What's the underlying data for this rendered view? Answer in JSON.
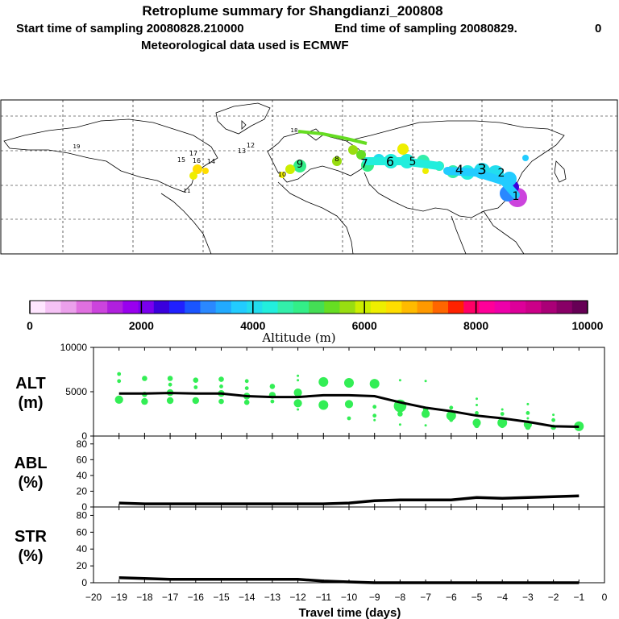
{
  "header": {
    "title": "Retroplume summary for Shangdianzi_200808",
    "start_label": "Start time of sampling 20080828.210000",
    "end_label": "End time of sampling 20080829.",
    "end_suffix": "0",
    "met_label": "Meteorological data used is ECMWF"
  },
  "colorbar": {
    "min": 0,
    "max": 10000,
    "tick_labels": [
      "0",
      "2000",
      "4000",
      "6000",
      "8000",
      "10000"
    ],
    "label": "Altitude (m)",
    "colors": [
      "#ffe6ff",
      "#f5c2f5",
      "#eba0eb",
      "#e070e0",
      "#cc44dd",
      "#b020dd",
      "#9900ee",
      "#7a00ee",
      "#3a00dd",
      "#2020ff",
      "#1a55ff",
      "#2a88ff",
      "#22aaff",
      "#22ccff",
      "#22ddee",
      "#22eedd",
      "#33eeaa",
      "#33ee88",
      "#44dd55",
      "#66dd22",
      "#99dd11",
      "#ccee00",
      "#eeee00",
      "#ffdd00",
      "#ffbb00",
      "#ff9900",
      "#ff6600",
      "#ff2200",
      "#ff0066",
      "#ff0099",
      "#ee00aa",
      "#dd0099",
      "#cc0088",
      "#aa0077",
      "#880066",
      "#660055"
    ]
  },
  "map_labels": [
    {
      "text": "18"
    },
    {
      "text": "19"
    },
    {
      "text": "17"
    },
    {
      "text": "15"
    },
    {
      "text": "16"
    },
    {
      "text": "14"
    },
    {
      "text": "13"
    },
    {
      "text": "12"
    },
    {
      "text": "11"
    },
    {
      "text": "10"
    },
    {
      "text": "9"
    },
    {
      "text": "8"
    },
    {
      "text": "7"
    },
    {
      "text": "6"
    },
    {
      "text": "5"
    },
    {
      "text": "4"
    },
    {
      "text": "3"
    },
    {
      "text": "2"
    },
    {
      "text": "1"
    }
  ],
  "chart_data": [
    {
      "type": "scatter",
      "name": "ALT",
      "ylabel": "ALT\n(m)",
      "ylabel_line1": "ALT",
      "ylabel_line2": "(m)",
      "ylim": [
        0,
        10000
      ],
      "yticks": [
        0,
        5000,
        10000
      ],
      "x": [
        -19,
        -18,
        -17,
        -16,
        -15,
        -14,
        -13,
        -12,
        -11,
        -10,
        -9,
        -8,
        -7,
        -6,
        -5,
        -4,
        -3,
        -2,
        -1
      ],
      "line_values": [
        4800,
        4800,
        4850,
        4800,
        4800,
        4500,
        4400,
        4400,
        4600,
        4600,
        4500,
        3800,
        3200,
        2800,
        2300,
        2000,
        1600,
        1100,
        1050
      ],
      "points": [
        {
          "x": -19,
          "y": 7000,
          "s": 2
        },
        {
          "x": -19,
          "y": 6200,
          "s": 2
        },
        {
          "x": -19,
          "y": 4100,
          "s": 5
        },
        {
          "x": -18,
          "y": 6500,
          "s": 3
        },
        {
          "x": -18,
          "y": 4700,
          "s": 3
        },
        {
          "x": -18,
          "y": 3900,
          "s": 4
        },
        {
          "x": -17,
          "y": 6500,
          "s": 3
        },
        {
          "x": -17,
          "y": 5800,
          "s": 2
        },
        {
          "x": -17,
          "y": 4900,
          "s": 4
        },
        {
          "x": -17,
          "y": 4000,
          "s": 4
        },
        {
          "x": -16,
          "y": 6300,
          "s": 3
        },
        {
          "x": -16,
          "y": 5500,
          "s": 2
        },
        {
          "x": -16,
          "y": 4000,
          "s": 4
        },
        {
          "x": -15,
          "y": 6400,
          "s": 3
        },
        {
          "x": -15,
          "y": 5600,
          "s": 2
        },
        {
          "x": -15,
          "y": 4800,
          "s": 4
        },
        {
          "x": -15,
          "y": 3900,
          "s": 3
        },
        {
          "x": -14,
          "y": 6200,
          "s": 2
        },
        {
          "x": -14,
          "y": 5400,
          "s": 2
        },
        {
          "x": -14,
          "y": 4500,
          "s": 4
        },
        {
          "x": -14,
          "y": 3800,
          "s": 3
        },
        {
          "x": -13,
          "y": 5600,
          "s": 3
        },
        {
          "x": -13,
          "y": 4600,
          "s": 4
        },
        {
          "x": -13,
          "y": 3900,
          "s": 2
        },
        {
          "x": -12,
          "y": 6800,
          "s": 1
        },
        {
          "x": -12,
          "y": 6300,
          "s": 1
        },
        {
          "x": -12,
          "y": 4900,
          "s": 5
        },
        {
          "x": -12,
          "y": 3700,
          "s": 5
        },
        {
          "x": -12,
          "y": 3000,
          "s": 1
        },
        {
          "x": -11,
          "y": 6100,
          "s": 6
        },
        {
          "x": -11,
          "y": 3500,
          "s": 6
        },
        {
          "x": -10,
          "y": 6000,
          "s": 6
        },
        {
          "x": -10,
          "y": 3600,
          "s": 5
        },
        {
          "x": -10,
          "y": 2000,
          "s": 2
        },
        {
          "x": -9,
          "y": 5900,
          "s": 6
        },
        {
          "x": -9,
          "y": 3300,
          "s": 2
        },
        {
          "x": -9,
          "y": 2300,
          "s": 2
        },
        {
          "x": -9,
          "y": 1800,
          "s": 1
        },
        {
          "x": -8,
          "y": 6300,
          "s": 1
        },
        {
          "x": -8,
          "y": 3400,
          "s": 8
        },
        {
          "x": -8,
          "y": 2500,
          "s": 3
        },
        {
          "x": -8,
          "y": 1300,
          "s": 1
        },
        {
          "x": -7,
          "y": 6200,
          "s": 1
        },
        {
          "x": -7,
          "y": 3000,
          "s": 3
        },
        {
          "x": -7,
          "y": 2500,
          "s": 5
        },
        {
          "x": -7,
          "y": 1200,
          "s": 1
        },
        {
          "x": -6,
          "y": 3200,
          "s": 2
        },
        {
          "x": -6,
          "y": 2300,
          "s": 6
        },
        {
          "x": -6,
          "y": 1800,
          "s": 2
        },
        {
          "x": -5,
          "y": 4200,
          "s": 1
        },
        {
          "x": -5,
          "y": 3500,
          "s": 1
        },
        {
          "x": -5,
          "y": 2600,
          "s": 2
        },
        {
          "x": -5,
          "y": 1500,
          "s": 5
        },
        {
          "x": -5,
          "y": 1200,
          "s": 3
        },
        {
          "x": -4,
          "y": 3000,
          "s": 1
        },
        {
          "x": -4,
          "y": 2500,
          "s": 2
        },
        {
          "x": -4,
          "y": 1500,
          "s": 6
        },
        {
          "x": -4,
          "y": 1200,
          "s": 3
        },
        {
          "x": -3,
          "y": 3600,
          "s": 1
        },
        {
          "x": -3,
          "y": 2600,
          "s": 2
        },
        {
          "x": -3,
          "y": 2000,
          "s": 1
        },
        {
          "x": -3,
          "y": 1300,
          "s": 5
        },
        {
          "x": -3,
          "y": 1000,
          "s": 3
        },
        {
          "x": -2,
          "y": 2400,
          "s": 1
        },
        {
          "x": -2,
          "y": 1800,
          "s": 2
        },
        {
          "x": -2,
          "y": 1000,
          "s": 3
        },
        {
          "x": -1,
          "y": 1100,
          "s": 6
        },
        {
          "x": -1,
          "y": 800,
          "s": 2
        }
      ],
      "point_color": "#33ee55"
    },
    {
      "type": "line",
      "name": "ABL",
      "ylabel_line1": "ABL",
      "ylabel_line2": "(%)",
      "ylim": [
        0,
        90
      ],
      "yticks": [
        0,
        20,
        40,
        60,
        80
      ],
      "x": [
        -19,
        -18,
        -17,
        -16,
        -15,
        -14,
        -13,
        -12,
        -11,
        -10,
        -9,
        -8,
        -7,
        -6,
        -5,
        -4,
        -3,
        -2,
        -1
      ],
      "values": [
        5,
        4,
        4,
        4,
        4,
        4,
        4,
        4,
        4,
        5,
        8,
        9,
        9,
        9,
        12,
        11,
        12,
        13,
        14
      ]
    },
    {
      "type": "line",
      "name": "STR",
      "ylabel_line1": "STR",
      "ylabel_line2": "(%)",
      "ylim": [
        0,
        90
      ],
      "yticks": [
        0,
        20,
        40,
        60,
        80
      ],
      "x": [
        -19,
        -18,
        -17,
        -16,
        -15,
        -14,
        -13,
        -12,
        -11,
        -10,
        -9,
        -8,
        -7,
        -6,
        -5,
        -4,
        -3,
        -2,
        -1
      ],
      "values": [
        6,
        5,
        4,
        4,
        4,
        4,
        4,
        4,
        2,
        1,
        0,
        0,
        0,
        0,
        0,
        0,
        0,
        0,
        0
      ]
    }
  ],
  "xaxis": {
    "label": "Travel time (days)",
    "xlim": [
      -20,
      0
    ],
    "ticks": [
      -20,
      -19,
      -18,
      -17,
      -16,
      -15,
      -14,
      -13,
      -12,
      -11,
      -10,
      -9,
      -8,
      -7,
      -6,
      -5,
      -4,
      -3,
      -2,
      -1,
      0
    ],
    "tick_labels": [
      "−20",
      "−19",
      "−18",
      "−17",
      "−16",
      "−15",
      "−14",
      "−13",
      "−12",
      "−11",
      "−10",
      "−9",
      "−8",
      "−7",
      "−6",
      "−5",
      "−4",
      "−3",
      "−2",
      "−1",
      "0"
    ]
  }
}
